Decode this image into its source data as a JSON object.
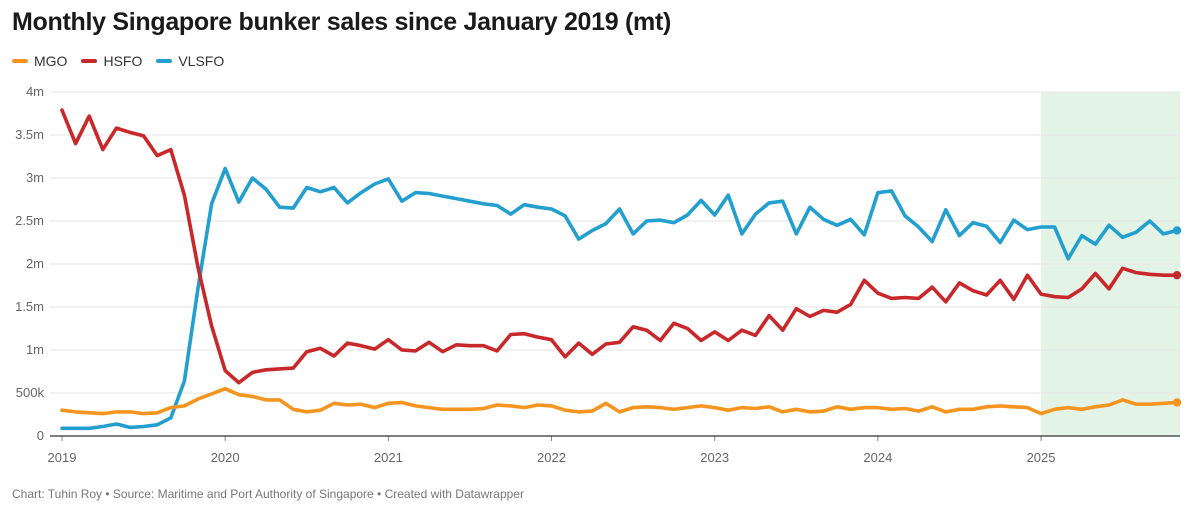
{
  "title": "Monthly Singapore bunker sales since January 2019 (mt)",
  "footer": "Chart: Tuhin Roy • Source: Maritime and Port Authority of Singapore • Created with Datawrapper",
  "colors": {
    "MGO": "#f5951f",
    "HSFO": "#c8282a",
    "VLSFO": "#239fcf",
    "highlight": "#e3f4e6",
    "grid": "#e4e4e4",
    "baseline": "#333333"
  },
  "chart_data": {
    "type": "line",
    "title": "Monthly Singapore bunker sales since January 2019 (mt)",
    "xlabel": "",
    "ylabel": "",
    "x_start": "2019-01",
    "x_end": "2025-11",
    "xlim": [
      "2019-01",
      "2025-11"
    ],
    "ylim": [
      0,
      4000000
    ],
    "y_ticks": [
      {
        "value": 0,
        "label": "0"
      },
      {
        "value": 500000,
        "label": "500k"
      },
      {
        "value": 1000000,
        "label": "1m"
      },
      {
        "value": 1500000,
        "label": "1.5m"
      },
      {
        "value": 2000000,
        "label": "2m"
      },
      {
        "value": 2500000,
        "label": "2.5m"
      },
      {
        "value": 3000000,
        "label": "3m"
      },
      {
        "value": 3500000,
        "label": "3.5m"
      },
      {
        "value": 4000000,
        "label": "4m"
      }
    ],
    "x_ticks": [
      {
        "value": "2019-01",
        "label": "2019"
      },
      {
        "value": "2020-01",
        "label": "2020"
      },
      {
        "value": "2021-01",
        "label": "2021"
      },
      {
        "value": "2022-01",
        "label": "2022"
      },
      {
        "value": "2023-01",
        "label": "2023"
      },
      {
        "value": "2024-01",
        "label": "2024"
      },
      {
        "value": "2025-01",
        "label": "2025"
      }
    ],
    "highlight_range": [
      "2025-01",
      "2025-11"
    ],
    "grid": true,
    "legend": "top-left",
    "series": [
      {
        "name": "MGO",
        "color": "#f5951f",
        "values": [
          300000,
          280000,
          270000,
          260000,
          280000,
          280000,
          260000,
          270000,
          330000,
          350000,
          430000,
          490000,
          550000,
          480000,
          460000,
          420000,
          420000,
          310000,
          280000,
          300000,
          380000,
          360000,
          370000,
          330000,
          380000,
          390000,
          350000,
          330000,
          310000,
          310000,
          310000,
          320000,
          360000,
          350000,
          330000,
          360000,
          350000,
          300000,
          280000,
          290000,
          380000,
          280000,
          330000,
          340000,
          330000,
          310000,
          330000,
          350000,
          330000,
          300000,
          330000,
          320000,
          340000,
          280000,
          310000,
          280000,
          290000,
          340000,
          310000,
          330000,
          330000,
          310000,
          320000,
          290000,
          340000,
          280000,
          310000,
          310000,
          340000,
          350000,
          340000,
          330000,
          260000,
          310000,
          330000,
          310000,
          340000,
          360000,
          420000,
          370000,
          370000,
          380000,
          390000
        ]
      },
      {
        "name": "HSFO",
        "color": "#c8282a",
        "values": [
          3790000,
          3400000,
          3720000,
          3330000,
          3580000,
          3530000,
          3490000,
          3260000,
          3330000,
          2800000,
          1960000,
          1280000,
          760000,
          620000,
          740000,
          770000,
          780000,
          790000,
          980000,
          1020000,
          930000,
          1080000,
          1050000,
          1010000,
          1120000,
          1000000,
          990000,
          1090000,
          980000,
          1060000,
          1050000,
          1050000,
          990000,
          1180000,
          1190000,
          1150000,
          1120000,
          920000,
          1080000,
          950000,
          1070000,
          1090000,
          1270000,
          1230000,
          1110000,
          1310000,
          1250000,
          1110000,
          1210000,
          1110000,
          1230000,
          1170000,
          1400000,
          1230000,
          1480000,
          1390000,
          1460000,
          1440000,
          1530000,
          1810000,
          1660000,
          1600000,
          1610000,
          1600000,
          1730000,
          1560000,
          1780000,
          1690000,
          1640000,
          1810000,
          1590000,
          1870000,
          1650000,
          1620000,
          1610000,
          1710000,
          1890000,
          1710000,
          1950000,
          1900000,
          1880000,
          1870000,
          1870000
        ]
      },
      {
        "name": "VLSFO",
        "color": "#239fcf",
        "values": [
          90000,
          90000,
          90000,
          110000,
          140000,
          100000,
          110000,
          130000,
          210000,
          640000,
          1720000,
          2700000,
          3110000,
          2720000,
          3000000,
          2870000,
          2660000,
          2650000,
          2890000,
          2840000,
          2890000,
          2710000,
          2830000,
          2930000,
          2990000,
          2730000,
          2830000,
          2820000,
          2790000,
          2760000,
          2730000,
          2700000,
          2680000,
          2580000,
          2690000,
          2660000,
          2640000,
          2560000,
          2290000,
          2390000,
          2470000,
          2640000,
          2350000,
          2500000,
          2510000,
          2480000,
          2570000,
          2740000,
          2570000,
          2800000,
          2350000,
          2580000,
          2710000,
          2730000,
          2350000,
          2660000,
          2520000,
          2450000,
          2520000,
          2340000,
          2830000,
          2850000,
          2560000,
          2430000,
          2260000,
          2630000,
          2330000,
          2480000,
          2440000,
          2250000,
          2510000,
          2400000,
          2430000,
          2430000,
          2060000,
          2330000,
          2230000,
          2450000,
          2310000,
          2370000,
          2500000,
          2350000,
          2390000
        ]
      }
    ]
  }
}
